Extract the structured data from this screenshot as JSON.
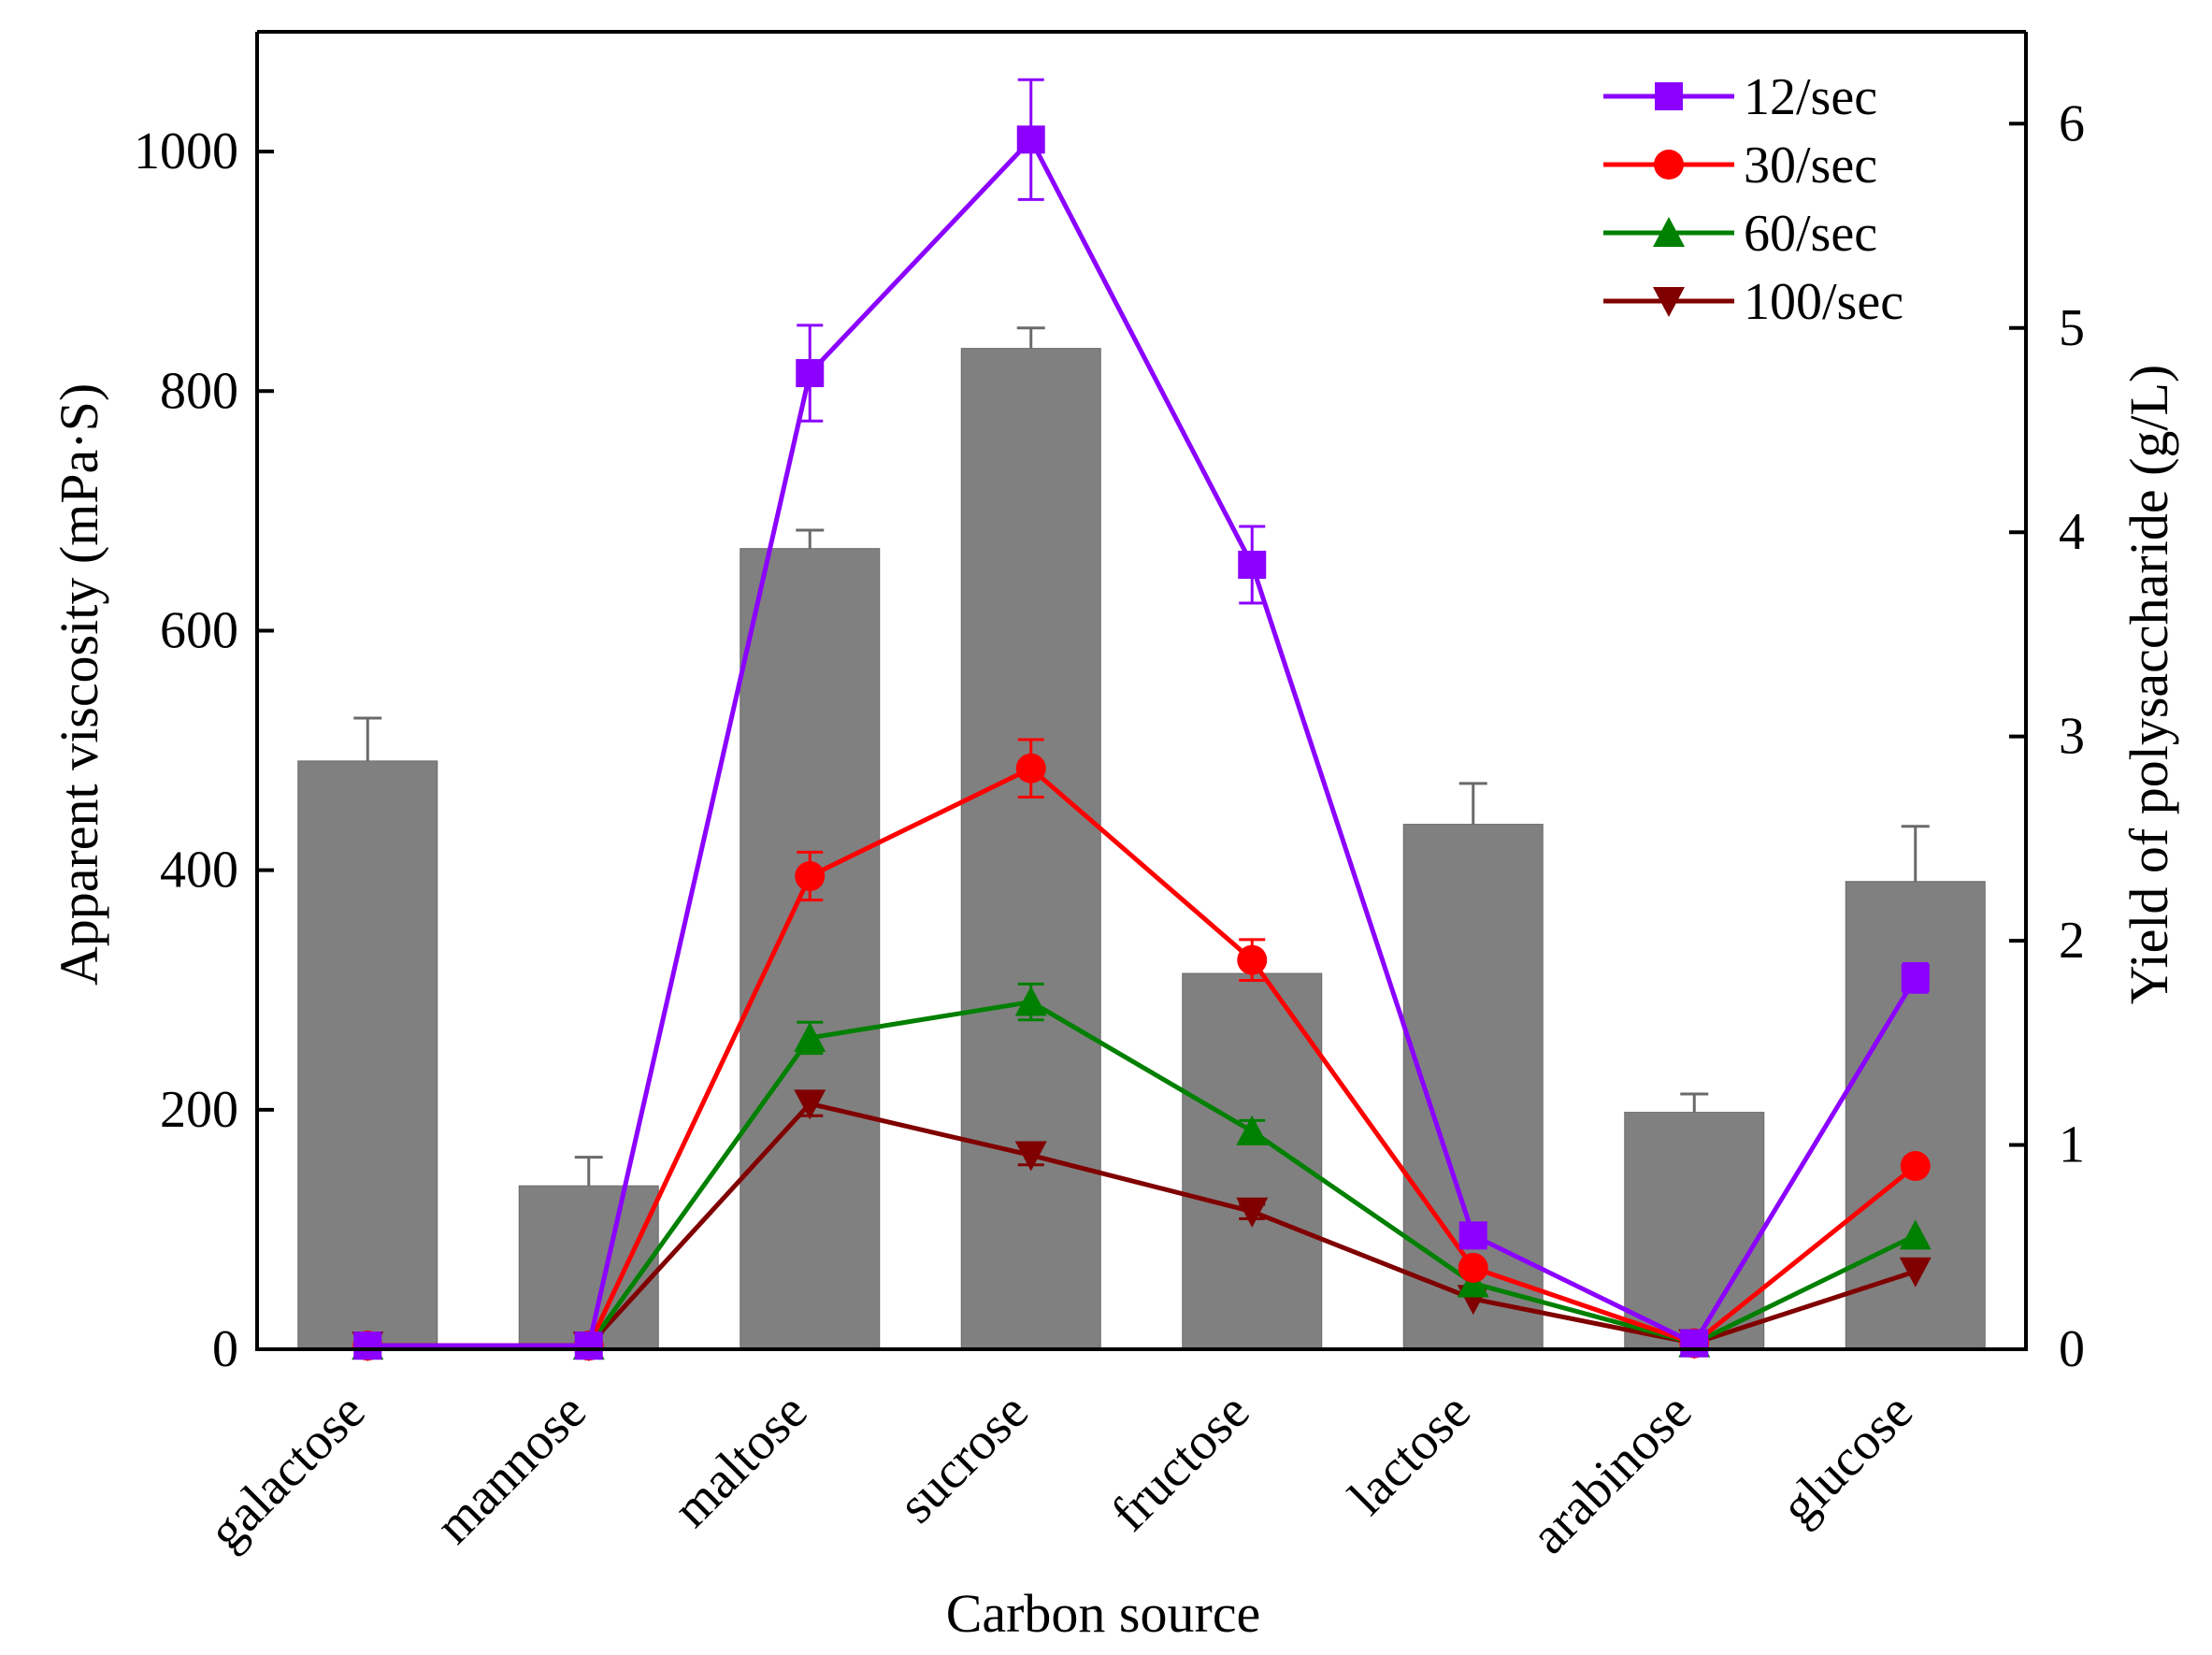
{
  "chart_data": {
    "type": "bar",
    "categories": [
      "galactose",
      "mannose",
      "maltose",
      "sucrose",
      "fructose",
      "lactose",
      "arabinose",
      "glucose"
    ],
    "xlabel": "Carbon source",
    "ylabel": "Apparent viscosity (mPa·S)",
    "ylabel_right": "Yield of polysaccharide (g/L)",
    "ylim": [
      0,
      1100
    ],
    "ylim_right": [
      0,
      6.45
    ],
    "yticks": [
      0,
      200,
      400,
      600,
      800,
      1000
    ],
    "yticks_right": [
      0,
      1,
      2,
      3,
      4,
      5,
      6
    ],
    "bars": {
      "axis": "right",
      "color": "#808080",
      "values": [
        2.88,
        0.8,
        3.92,
        4.9,
        1.84,
        2.57,
        1.16,
        2.29
      ],
      "errors": [
        0.21,
        0.14,
        0.09,
        0.1,
        0.0,
        0.2,
        0.09,
        0.27
      ]
    },
    "series": [
      {
        "name": "12/sec",
        "axis": "left",
        "color": "#8B00FF",
        "marker": "square",
        "values": [
          3,
          3,
          815,
          1010,
          655,
          95,
          5,
          310
        ],
        "errors": [
          0,
          0,
          40,
          50,
          32,
          0,
          0,
          12
        ]
      },
      {
        "name": "30/sec",
        "axis": "left",
        "color": "#FF0000",
        "marker": "circle",
        "values": [
          3,
          3,
          395,
          485,
          325,
          68,
          5,
          153
        ],
        "errors": [
          0,
          0,
          20,
          24,
          17,
          0,
          0,
          0
        ]
      },
      {
        "name": "60/sec",
        "axis": "left",
        "color": "#008000",
        "marker": "triangle-up",
        "values": [
          3,
          3,
          260,
          290,
          182,
          55,
          5,
          95
        ],
        "errors": [
          0,
          0,
          13,
          15,
          9,
          0,
          0,
          0
        ]
      },
      {
        "name": "100/sec",
        "axis": "left",
        "color": "#800000",
        "marker": "triangle-down",
        "values": [
          3,
          3,
          205,
          162,
          115,
          42,
          5,
          65
        ],
        "errors": [
          0,
          0,
          10,
          8,
          6,
          0,
          0,
          0
        ]
      }
    ],
    "legend": "top-right",
    "grid": false
  }
}
